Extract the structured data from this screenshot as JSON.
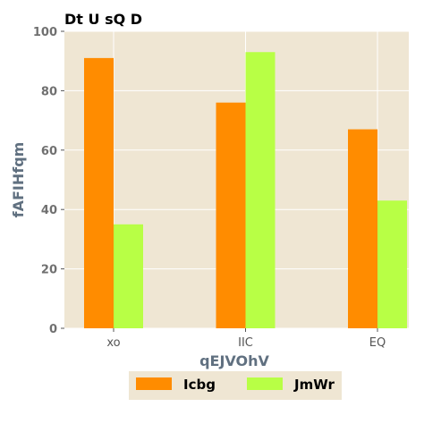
{
  "chart_data": {
    "type": "bar",
    "title": "Dt U sQ D",
    "xlabel": "qEJVOhV",
    "ylabel": "fAFIHfqm",
    "categories": [
      "xo",
      "IIC",
      "EQ"
    ],
    "series": [
      {
        "name": "Icbg",
        "values": [
          91,
          76,
          67
        ],
        "color": "#ff8c00"
      },
      {
        "name": "JmWr",
        "values": [
          35,
          93,
          43
        ],
        "color": "#b8ff45"
      }
    ],
    "ylim": [
      0,
      100
    ],
    "yticks": [
      0,
      20,
      40,
      60,
      80,
      100
    ],
    "grid": true,
    "legend_position": "bottom-center",
    "background_color": "#efe6d3",
    "grid_color": "#ffffff"
  }
}
